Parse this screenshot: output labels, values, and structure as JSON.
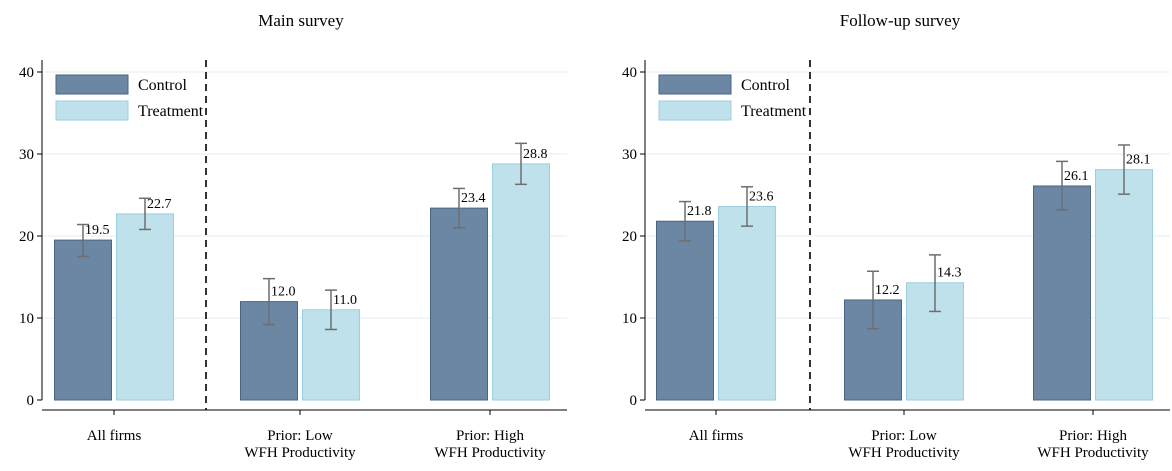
{
  "colors": {
    "control": "#6b87a3",
    "control_edge": "#4a6580",
    "treatment": "#bfe1eb",
    "treatment_edge": "#9ccfdd",
    "error_bar": "#6e6e6e",
    "grid": "#e6edf1"
  },
  "chart_data": [
    {
      "type": "bar",
      "title": "Main survey",
      "xlabel": "",
      "ylabel": "",
      "ylim": [
        0,
        40
      ],
      "yticks": [
        0,
        10,
        20,
        30,
        40
      ],
      "grid": true,
      "legend_position": "top-left",
      "divider_after_category": 0,
      "categories": [
        [
          "All firms"
        ],
        [
          "Prior: Low",
          "WFH Productivity"
        ],
        [
          "Prior: High",
          "WFH Productivity"
        ]
      ],
      "series": [
        {
          "name": "Control",
          "values": [
            19.5,
            12.0,
            23.4
          ],
          "labels": [
            "19.5",
            "12.0",
            "23.4"
          ],
          "ci_low": [
            17.5,
            9.2,
            21.0
          ],
          "ci_high": [
            21.4,
            14.8,
            25.8
          ]
        },
        {
          "name": "Treatment",
          "values": [
            22.7,
            11.0,
            28.8
          ],
          "labels": [
            "22.7",
            "11.0",
            "28.8"
          ],
          "ci_low": [
            20.8,
            8.6,
            26.3
          ],
          "ci_high": [
            24.6,
            13.4,
            31.3
          ]
        }
      ]
    },
    {
      "type": "bar",
      "title": "Follow-up survey",
      "xlabel": "",
      "ylabel": "",
      "ylim": [
        0,
        40
      ],
      "yticks": [
        0,
        10,
        20,
        30,
        40
      ],
      "grid": true,
      "legend_position": "top-left",
      "divider_after_category": 0,
      "categories": [
        [
          "All firms"
        ],
        [
          "Prior: Low",
          "WFH Productivity"
        ],
        [
          "Prior: High",
          "WFH Productivity"
        ]
      ],
      "series": [
        {
          "name": "Control",
          "values": [
            21.8,
            12.2,
            26.1
          ],
          "labels": [
            "21.8",
            "12.2",
            "26.1"
          ],
          "ci_low": [
            19.4,
            8.7,
            23.2
          ],
          "ci_high": [
            24.2,
            15.7,
            29.1
          ]
        },
        {
          "name": "Treatment",
          "values": [
            23.6,
            14.3,
            28.1
          ],
          "labels": [
            "23.6",
            "14.3",
            "28.1"
          ],
          "ci_low": [
            21.2,
            10.8,
            25.1
          ],
          "ci_high": [
            26.0,
            17.7,
            31.1
          ]
        }
      ]
    }
  ]
}
